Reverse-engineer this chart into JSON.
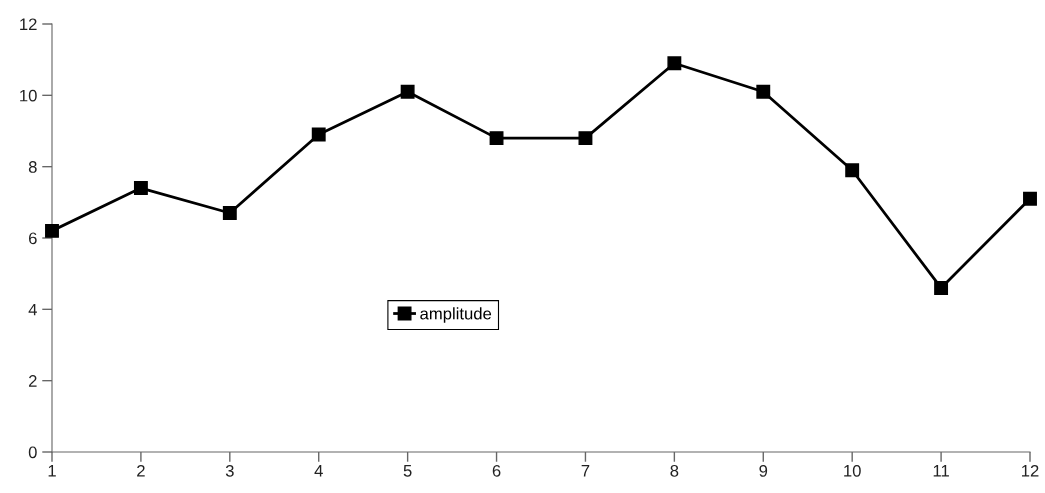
{
  "chart_data": {
    "type": "line",
    "x": [
      1,
      2,
      3,
      4,
      5,
      6,
      7,
      8,
      9,
      10,
      11,
      12
    ],
    "series": [
      {
        "name": "amplitude",
        "color": "#000000",
        "values": [
          6.2,
          7.4,
          6.7,
          8.9,
          10.1,
          8.8,
          8.8,
          10.9,
          10.1,
          7.9,
          4.6,
          7.1
        ]
      }
    ],
    "xlim": [
      1,
      12
    ],
    "xticks": [
      1,
      2,
      3,
      4,
      5,
      6,
      7,
      8,
      9,
      10,
      11,
      12
    ],
    "ylim": [
      0,
      12
    ],
    "yticks": [
      0,
      2,
      4,
      6,
      8,
      10,
      12
    ],
    "marker": "square",
    "line_style": "solid",
    "grid": false,
    "legend": "center"
  }
}
